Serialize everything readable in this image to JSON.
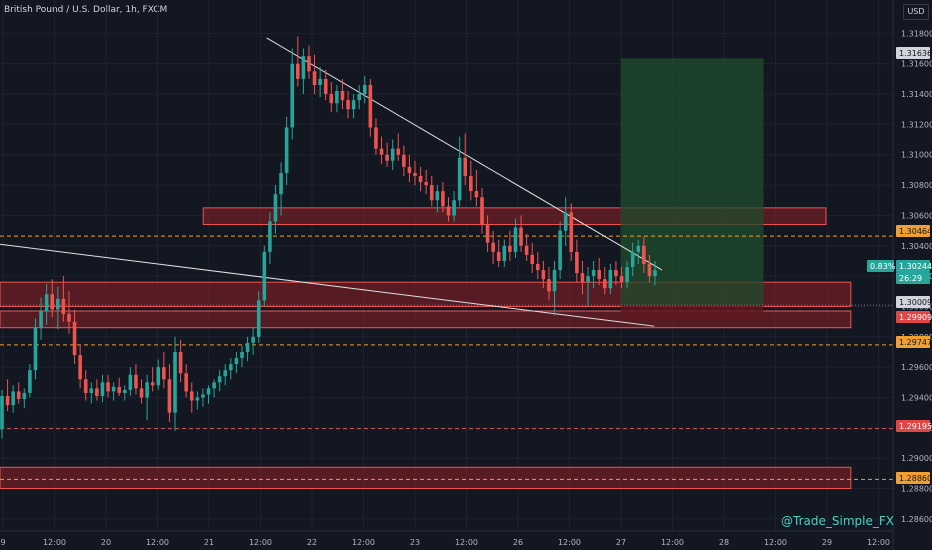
{
  "header": {
    "title": "British Pound / U.S. Dollar, 1h, FXCM",
    "currency": "USD"
  },
  "watermark": "@Trade_Simple_FX",
  "colors": {
    "background": "#131722",
    "up": "#26a69a",
    "down": "#ef5350",
    "zone_fill": "#8e1f24",
    "zone_border": "#ef5350",
    "target_fill": "#1f4d2c",
    "stop_fill": "#5e1a1e",
    "dashed_orange": "#f0a030",
    "dashed_red": "#e05050",
    "trendline": "#e0e0e0"
  },
  "chart_data": {
    "type": "candlestick",
    "y_ticks": [
      "1.31800",
      "1.31600",
      "1.31400",
      "1.31200",
      "1.31000",
      "1.30800",
      "1.30600",
      "1.30400",
      "1.30200",
      "1.30000",
      "1.29800",
      "1.29600",
      "1.29400",
      "1.29200",
      "1.29000",
      "1.28800",
      "1.28600"
    ],
    "ylim": [
      1.2852,
      1.3202
    ],
    "x_ticks": [
      "9",
      "12:00",
      "20",
      "12:00",
      "21",
      "12:00",
      "22",
      "12:00",
      "23",
      "12:00",
      "26",
      "12:00",
      "27",
      "12:00",
      "28",
      "12:00",
      "29",
      "12:00"
    ],
    "price_labels": [
      {
        "value": "1.31636",
        "style": "neutral"
      },
      {
        "value": "1.30464",
        "style": "orange"
      },
      {
        "value": "1.30244",
        "style": "teal"
      },
      {
        "value": "26:29",
        "style": "teal"
      },
      {
        "value": "1.30009",
        "style": "neutral"
      },
      {
        "value": "1.29909",
        "style": "red"
      },
      {
        "value": "1.29747",
        "style": "orange"
      },
      {
        "value": "1.29195",
        "style": "red"
      },
      {
        "value": "1.28860",
        "style": "orange"
      }
    ],
    "change_pct": "0.83%",
    "dashed_levels": [
      {
        "price": 1.30464,
        "color": "orange"
      },
      {
        "price": 1.29747,
        "color": "orange"
      },
      {
        "price": 1.29195,
        "color": "red"
      },
      {
        "price": 1.2886,
        "color": "orange"
      },
      {
        "price": 1.30009,
        "color": "gray"
      }
    ],
    "zones": [
      {
        "from": 1.3054,
        "to": 1.3065,
        "x_from": 0.2276,
        "x_to": 0.9249
      },
      {
        "from": 1.3,
        "to": 1.3016,
        "x_from": 0.0,
        "x_to": 0.9528
      },
      {
        "from": 1.2986,
        "to": 1.2997,
        "x_from": 0.0,
        "x_to": 0.9528
      },
      {
        "from": 1.288,
        "to": 1.2894,
        "x_from": 0.0,
        "x_to": 0.9528
      }
    ],
    "position": {
      "entry": 1.30009,
      "target": 1.31636,
      "stop": 1.29909,
      "x_from": 0.695,
      "x_to": 0.855
    },
    "trendlines": [
      {
        "from": [
          0.2986,
          1.3177
        ],
        "to": [
          0.7414,
          1.3024
        ]
      },
      {
        "from": [
          0.0,
          1.3041
        ],
        "to": [
          0.7328,
          1.2987
        ]
      }
    ],
    "candles": [
      [
        1.2919,
        1.2945,
        1.2913,
        1.2941
      ],
      [
        1.2941,
        1.2952,
        1.2931,
        1.2935
      ],
      [
        1.2935,
        1.2948,
        1.293,
        1.2944
      ],
      [
        1.2944,
        1.295,
        1.2936,
        1.2939
      ],
      [
        1.2939,
        1.2946,
        1.2933,
        1.2943
      ],
      [
        1.2943,
        1.2962,
        1.294,
        1.2958
      ],
      [
        1.2958,
        1.2992,
        1.2952,
        1.2986
      ],
      [
        1.2986,
        1.3006,
        1.2978,
        1.2997
      ],
      [
        1.2997,
        1.3015,
        1.2988,
        1.3008
      ],
      [
        1.3008,
        1.3018,
        1.2993,
        1.2998
      ],
      [
        1.2998,
        1.3013,
        1.2985,
        1.3005
      ],
      [
        1.3005,
        1.302,
        1.299,
        1.2995
      ],
      [
        1.2995,
        1.301,
        1.2982,
        1.299
      ],
      [
        1.299,
        1.2998,
        1.2962,
        1.2968
      ],
      [
        1.2968,
        1.2975,
        1.2946,
        1.2952
      ],
      [
        1.2952,
        1.2958,
        1.2938,
        1.2943
      ],
      [
        1.2943,
        1.295,
        1.2936,
        1.2946
      ],
      [
        1.2946,
        1.2952,
        1.2938,
        1.2941
      ],
      [
        1.2941,
        1.2955,
        1.2937,
        1.295
      ],
      [
        1.295,
        1.2955,
        1.294,
        1.2944
      ],
      [
        1.2944,
        1.295,
        1.2938,
        1.2947
      ],
      [
        1.2947,
        1.2953,
        1.2941,
        1.2943
      ],
      [
        1.2943,
        1.2948,
        1.2938,
        1.2945
      ],
      [
        1.2945,
        1.296,
        1.2941,
        1.2955
      ],
      [
        1.2955,
        1.2962,
        1.2942,
        1.2946
      ],
      [
        1.2946,
        1.2952,
        1.2936,
        1.294
      ],
      [
        1.294,
        1.2955,
        1.2925,
        1.295
      ],
      [
        1.295,
        1.296,
        1.2944,
        1.2948
      ],
      [
        1.2948,
        1.2965,
        1.2945,
        1.296
      ],
      [
        1.296,
        1.297,
        1.2946,
        1.2952
      ],
      [
        1.2952,
        1.2962,
        1.2924,
        1.293
      ],
      [
        1.293,
        1.298,
        1.2918,
        1.297
      ],
      [
        1.297,
        1.2978,
        1.295,
        1.2956
      ],
      [
        1.2956,
        1.2962,
        1.294,
        1.2944
      ],
      [
        1.2944,
        1.295,
        1.293,
        1.2938
      ],
      [
        1.2938,
        1.2944,
        1.2932,
        1.294
      ],
      [
        1.294,
        1.2946,
        1.2934,
        1.2942
      ],
      [
        1.2942,
        1.2948,
        1.2936,
        1.2946
      ],
      [
        1.2946,
        1.2952,
        1.294,
        1.295
      ],
      [
        1.295,
        1.2958,
        1.2944,
        1.2954
      ],
      [
        1.2954,
        1.2962,
        1.2948,
        1.2958
      ],
      [
        1.2958,
        1.2966,
        1.2952,
        1.2962
      ],
      [
        1.2962,
        1.297,
        1.2956,
        1.2966
      ],
      [
        1.2966,
        1.2974,
        1.296,
        1.297
      ],
      [
        1.297,
        1.298,
        1.2964,
        1.2976
      ],
      [
        1.2976,
        1.2986,
        1.2968,
        1.298
      ],
      [
        1.298,
        1.301,
        1.2976,
        1.3004
      ],
      [
        1.3004,
        1.304,
        1.3,
        1.3036
      ],
      [
        1.3036,
        1.3062,
        1.3028,
        1.3056
      ],
      [
        1.3056,
        1.308,
        1.3048,
        1.3074
      ],
      [
        1.3074,
        1.3095,
        1.306,
        1.3088
      ],
      [
        1.3088,
        1.3125,
        1.308,
        1.3118
      ],
      [
        1.3118,
        1.317,
        1.311,
        1.316
      ],
      [
        1.316,
        1.3178,
        1.3145,
        1.315
      ],
      [
        1.315,
        1.317,
        1.314,
        1.3165
      ],
      [
        1.3165,
        1.3172,
        1.315,
        1.3155
      ],
      [
        1.3155,
        1.3166,
        1.314,
        1.3146
      ],
      [
        1.3146,
        1.3158,
        1.3138,
        1.315
      ],
      [
        1.315,
        1.3156,
        1.3136,
        1.314
      ],
      [
        1.314,
        1.3148,
        1.3128,
        1.3134
      ],
      [
        1.3134,
        1.3146,
        1.3128,
        1.3142
      ],
      [
        1.3142,
        1.315,
        1.313,
        1.3136
      ],
      [
        1.3136,
        1.3142,
        1.3124,
        1.313
      ],
      [
        1.313,
        1.314,
        1.3124,
        1.3136
      ],
      [
        1.3136,
        1.3146,
        1.313,
        1.314
      ],
      [
        1.314,
        1.3152,
        1.3134,
        1.3146
      ],
      [
        1.3146,
        1.315,
        1.3112,
        1.3118
      ],
      [
        1.3118,
        1.3124,
        1.31,
        1.3104
      ],
      [
        1.3104,
        1.3112,
        1.3094,
        1.31
      ],
      [
        1.31,
        1.3108,
        1.3092,
        1.3096
      ],
      [
        1.3096,
        1.311,
        1.309,
        1.3104
      ],
      [
        1.3104,
        1.3114,
        1.3096,
        1.31
      ],
      [
        1.31,
        1.3106,
        1.3086,
        1.3092
      ],
      [
        1.3092,
        1.31,
        1.3082,
        1.3088
      ],
      [
        1.3088,
        1.3096,
        1.308,
        1.3086
      ],
      [
        1.3086,
        1.3092,
        1.3076,
        1.3082
      ],
      [
        1.3082,
        1.309,
        1.3074,
        1.308
      ],
      [
        1.308,
        1.3086,
        1.3066,
        1.307
      ],
      [
        1.307,
        1.308,
        1.3062,
        1.3076
      ],
      [
        1.3076,
        1.3082,
        1.3062,
        1.3066
      ],
      [
        1.3066,
        1.3072,
        1.3056,
        1.306
      ],
      [
        1.306,
        1.3076,
        1.3056,
        1.307
      ],
      [
        1.307,
        1.3112,
        1.3066,
        1.3098
      ],
      [
        1.3098,
        1.3114,
        1.308,
        1.3086
      ],
      [
        1.3086,
        1.3096,
        1.307,
        1.3076
      ],
      [
        1.3076,
        1.309,
        1.3066,
        1.3072
      ],
      [
        1.3072,
        1.3078,
        1.3048,
        1.3054
      ],
      [
        1.3054,
        1.306,
        1.3036,
        1.3042
      ],
      [
        1.3042,
        1.305,
        1.3028,
        1.3036
      ],
      [
        1.3036,
        1.3044,
        1.3026,
        1.303
      ],
      [
        1.303,
        1.3044,
        1.3026,
        1.304
      ],
      [
        1.304,
        1.305,
        1.303,
        1.3036
      ],
      [
        1.3036,
        1.3058,
        1.3032,
        1.3052
      ],
      [
        1.3052,
        1.306,
        1.3036,
        1.304
      ],
      [
        1.304,
        1.3048,
        1.303,
        1.3034
      ],
      [
        1.3034,
        1.3042,
        1.3022,
        1.3028
      ],
      [
        1.3028,
        1.3036,
        1.3018,
        1.3024
      ],
      [
        1.3024,
        1.303,
        1.3012,
        1.3018
      ],
      [
        1.3018,
        1.3026,
        1.3004,
        1.301
      ],
      [
        1.301,
        1.303,
        1.2994,
        1.3024
      ],
      [
        1.3024,
        1.3056,
        1.3018,
        1.305
      ],
      [
        1.305,
        1.3072,
        1.304,
        1.3062
      ],
      [
        1.3062,
        1.3068,
        1.303,
        1.3036
      ],
      [
        1.3036,
        1.3044,
        1.3016,
        1.3022
      ],
      [
        1.3022,
        1.303,
        1.3008,
        1.3016
      ],
      [
        1.3016,
        1.3026,
        1.3,
        1.302
      ],
      [
        1.302,
        1.303,
        1.3012,
        1.3024
      ],
      [
        1.3024,
        1.3032,
        1.3014,
        1.3018
      ],
      [
        1.3018,
        1.3026,
        1.3008,
        1.3012
      ],
      [
        1.3012,
        1.3028,
        1.3008,
        1.3024
      ],
      [
        1.3024,
        1.303,
        1.3014,
        1.302
      ],
      [
        1.302,
        1.3026,
        1.3012,
        1.3016
      ],
      [
        1.3016,
        1.303,
        1.3012,
        1.3026
      ],
      [
        1.3026,
        1.3042,
        1.302,
        1.3036
      ],
      [
        1.3036,
        1.3044,
        1.3028,
        1.304
      ],
      [
        1.304,
        1.3046,
        1.3022,
        1.3028
      ],
      [
        1.3028,
        1.3034,
        1.3016,
        1.302
      ],
      [
        1.302,
        1.303,
        1.3014,
        1.3024
      ]
    ]
  }
}
